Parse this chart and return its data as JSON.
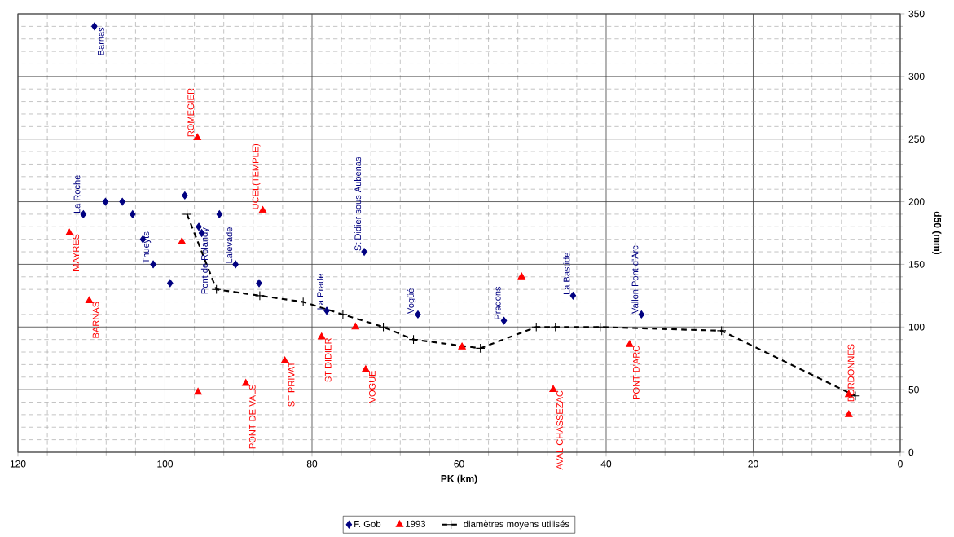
{
  "chart_data": {
    "type": "scatter",
    "xlabel": "PK (km)",
    "ylabel": "d50 (mm)",
    "xlim": [
      120,
      0
    ],
    "xticks": [
      0,
      20,
      40,
      60,
      80,
      100,
      120
    ],
    "ylim": [
      0,
      350
    ],
    "yticks": [
      0,
      50,
      100,
      150,
      200,
      250,
      300,
      350
    ],
    "grid": true,
    "legend": "bottom",
    "series": [
      {
        "name": "F. Gob",
        "marker": "diamond",
        "color": "#000080",
        "x": [
          109.6,
          111.1,
          108.1,
          105.8,
          104.4,
          103.0,
          101.6,
          99.3,
          97.3,
          95.4,
          95.0,
          92.6,
          90.4,
          87.2,
          78.0,
          72.9,
          65.6,
          53.9,
          44.5,
          35.2
        ],
        "values": [
          340,
          190,
          200,
          200,
          190,
          170,
          150,
          135,
          205,
          180,
          175,
          190,
          150,
          135,
          113,
          160,
          110,
          105,
          125,
          110
        ]
      },
      {
        "name": "1993",
        "marker": "triangle",
        "color": "#ff0000",
        "x": [
          113.0,
          110.3,
          97.7,
          95.6,
          95.5,
          89.0,
          86.7,
          83.7,
          78.7,
          74.1,
          72.7,
          59.6,
          51.5,
          47.2,
          36.8,
          7.0,
          7.0
        ],
        "values": [
          175,
          121,
          168,
          251,
          48,
          55,
          193,
          73,
          92,
          100,
          66,
          84,
          140,
          50,
          86,
          46,
          30
        ]
      },
      {
        "name": "diamètres moyens utilisés",
        "type": "line",
        "marker": "cross",
        "line_style": "dashed",
        "color": "#000000",
        "x": [
          97.0,
          93.0,
          87.1,
          81.2,
          75.8,
          70.3,
          66.2,
          57.1,
          49.5,
          46.9,
          40.8,
          24.3,
          6.1
        ],
        "values": [
          190,
          130,
          125,
          120,
          110,
          100,
          90,
          83,
          100,
          100,
          100,
          97,
          45
        ]
      }
    ],
    "annotations": [
      {
        "text": "Barnas",
        "x": 109.6,
        "y": 340
      },
      {
        "text": "La Roche",
        "x": 111.1,
        "y": 190
      },
      {
        "text": "Thueyts",
        "x": 101.6,
        "y": 150
      },
      {
        "text": "Pont de Rolandy",
        "x": 95.4,
        "y": 180
      },
      {
        "text": "Lalevade",
        "x": 90.4,
        "y": 150
      },
      {
        "text": "La Prade",
        "x": 78.0,
        "y": 113
      },
      {
        "text": "St Didier sous Aubenas",
        "x": 72.9,
        "y": 160
      },
      {
        "text": "Vogüé",
        "x": 65.6,
        "y": 110
      },
      {
        "text": "Pradons",
        "x": 53.9,
        "y": 105
      },
      {
        "text": "La Bastide",
        "x": 44.5,
        "y": 125
      },
      {
        "text": "Vallon Pont d'Arc",
        "x": 35.2,
        "y": 110
      },
      {
        "text": "MAYRES",
        "x": 113.0,
        "y": 175
      },
      {
        "text": "BARNAS",
        "x": 110.3,
        "y": 121
      },
      {
        "text": "ROMEGIER",
        "x": 95.6,
        "y": 251
      },
      {
        "text": "PONT DE VALS",
        "x": 89.0,
        "y": 55
      },
      {
        "text": "UCEL(TEMPLE)",
        "x": 86.7,
        "y": 193
      },
      {
        "text": "ST PRIVAT",
        "x": 83.7,
        "y": 73
      },
      {
        "text": "ST DIDIER",
        "x": 78.7,
        "y": 92
      },
      {
        "text": "VOGUE",
        "x": 72.7,
        "y": 66
      },
      {
        "text": "AVAL CHASSEZAC",
        "x": 47.2,
        "y": 50
      },
      {
        "text": "PONT D'ARC",
        "x": 36.8,
        "y": 86
      },
      {
        "text": "BORDONNES",
        "x": 7.0,
        "y": 30
      }
    ]
  }
}
